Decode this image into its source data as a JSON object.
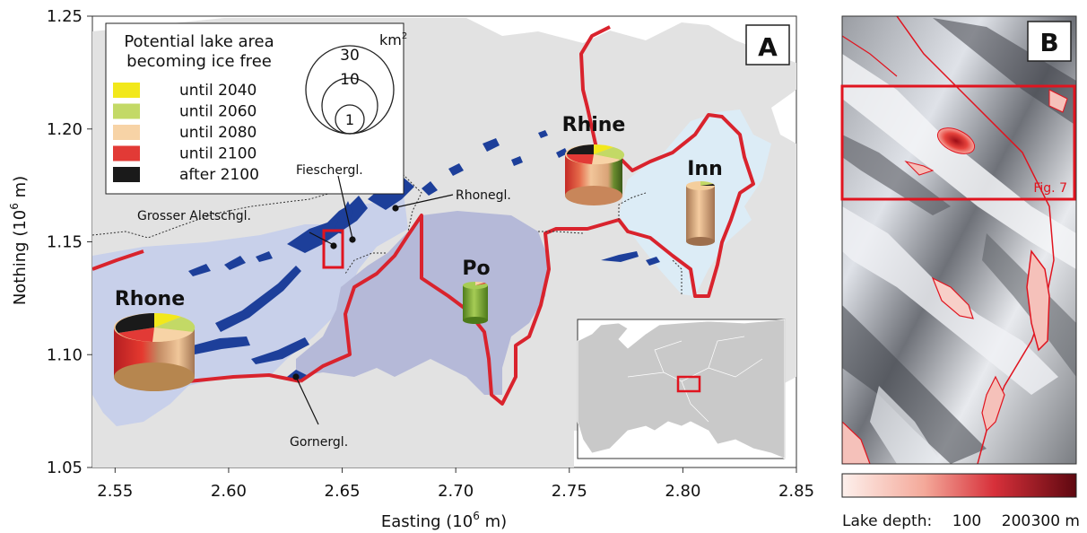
{
  "panel_a": {
    "label": "A",
    "xlabel": "Easting (10",
    "xlabel_exp": "6",
    "xlabel_unit": " m)",
    "ylabel": "Nothing (10",
    "ylabel_exp": "6",
    "ylabel_unit": " m)",
    "x_ticks": [
      "2.55",
      "2.60",
      "2.65",
      "2.70",
      "2.75",
      "2.80",
      "2.85"
    ],
    "y_ticks": [
      "1.25",
      "1.20",
      "1.15",
      "1.10",
      "1.05"
    ],
    "legend": {
      "title_line1": "Potential lake area",
      "title_line2": "becoming ice free",
      "items": [
        {
          "label": "until 2040",
          "color": "#f2e81b"
        },
        {
          "label": "until 2060",
          "color": "#c3d966"
        },
        {
          "label": "until 2080",
          "color": "#f7d3a6"
        },
        {
          "label": "until 2100",
          "color": "#e23a36"
        },
        {
          "label": "after 2100",
          "color": "#1a1a1a"
        }
      ],
      "size_unit": "km",
      "size_unit_exp": "2",
      "sizes": [
        "30",
        "10",
        "1"
      ]
    },
    "basins": [
      {
        "name": "Rhone"
      },
      {
        "name": "Rhine"
      },
      {
        "name": "Po"
      },
      {
        "name": "Inn"
      }
    ],
    "glaciers": [
      {
        "name": "Fieschergl."
      },
      {
        "name": "Rhonegl."
      },
      {
        "name": "Grosser Aletschgl."
      },
      {
        "name": "Gornergl."
      }
    ],
    "colors": {
      "border": "#d9232d",
      "glacier": "#1d3f9a",
      "rhone_basin": "#c8d0ea",
      "po_basin": "#b5b9d8",
      "inn_basin": "#dcecf6",
      "land": "#e2e2e2"
    }
  },
  "panel_b": {
    "label": "B",
    "fig_ref": "Fig. 7",
    "colorbar": {
      "label": "Lake depth:",
      "ticks": [
        "100",
        "200",
        "300 m"
      ],
      "color_low": "#fbe9e4",
      "color_high": "#6e0a12"
    }
  }
}
